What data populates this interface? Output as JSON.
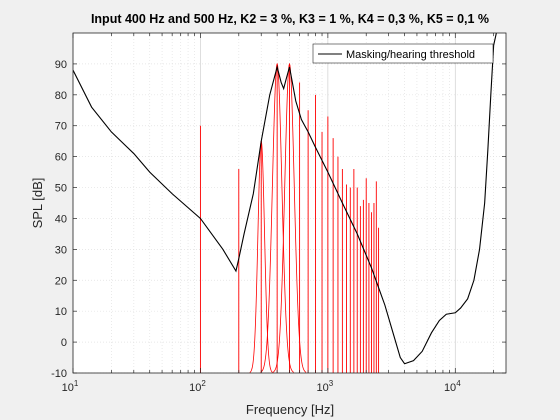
{
  "chart_data": {
    "type": "line",
    "title": "Input 400 Hz and 500 Hz, K2 = 3 %, K3 = 1 %, K4 = 0,3 %, K5 = 0,1 %",
    "xlabel": "Frequency [Hz]",
    "ylabel": "SPL [dB]",
    "xscale": "log",
    "xlim": [
      10,
      25000
    ],
    "ylim": [
      -10,
      100
    ],
    "yticks": [
      -10,
      0,
      10,
      20,
      30,
      40,
      50,
      60,
      70,
      80,
      90
    ],
    "xticks": [
      {
        "base": "10",
        "exp": "1"
      },
      {
        "base": "10",
        "exp": "2"
      },
      {
        "base": "10",
        "exp": "3"
      },
      {
        "base": "10",
        "exp": "4"
      }
    ],
    "grid": true,
    "legend": {
      "position": "top-right",
      "entries": [
        "Masking/hearing threshold"
      ]
    },
    "series": [
      {
        "name": "Masking/hearing threshold",
        "color": "#000000",
        "points": [
          [
            10,
            88
          ],
          [
            14,
            76
          ],
          [
            20,
            68
          ],
          [
            30,
            61
          ],
          [
            40,
            55
          ],
          [
            60,
            48
          ],
          [
            100,
            40
          ],
          [
            150,
            30
          ],
          [
            190,
            23
          ],
          [
            200,
            27
          ],
          [
            220,
            35
          ],
          [
            260,
            48
          ],
          [
            300,
            65
          ],
          [
            350,
            80
          ],
          [
            400,
            89
          ],
          [
            430,
            84
          ],
          [
            450,
            82
          ],
          [
            470,
            85
          ],
          [
            500,
            89
          ],
          [
            560,
            78
          ],
          [
            620,
            72
          ],
          [
            700,
            68
          ],
          [
            800,
            63
          ],
          [
            1000,
            55
          ],
          [
            1300,
            45
          ],
          [
            1700,
            35
          ],
          [
            2200,
            24
          ],
          [
            2800,
            12
          ],
          [
            3300,
            2
          ],
          [
            3700,
            -5
          ],
          [
            4000,
            -7
          ],
          [
            4700,
            -6
          ],
          [
            5500,
            -3
          ],
          [
            6500,
            3
          ],
          [
            7500,
            7
          ],
          [
            8500,
            9
          ],
          [
            10000,
            9.5
          ],
          [
            11000,
            11
          ],
          [
            12500,
            14
          ],
          [
            14000,
            20
          ],
          [
            15500,
            30
          ],
          [
            17000,
            45
          ],
          [
            18000,
            62
          ],
          [
            19000,
            80
          ],
          [
            20000,
            96
          ],
          [
            21000,
            100
          ]
        ]
      }
    ],
    "tone_lines": {
      "color": "#ff0000",
      "components": [
        {
          "f": 100,
          "level": 70
        },
        {
          "f": 200,
          "level": 56
        },
        {
          "f": 300,
          "level": 65
        },
        {
          "f": 400,
          "level": 90
        },
        {
          "f": 500,
          "level": 90
        },
        {
          "f": 600,
          "level": 84
        },
        {
          "f": 700,
          "level": 75
        },
        {
          "f": 800,
          "level": 80
        },
        {
          "f": 900,
          "level": 68
        },
        {
          "f": 1000,
          "level": 73
        },
        {
          "f": 1100,
          "level": 66
        },
        {
          "f": 1200,
          "level": 60
        },
        {
          "f": 1300,
          "level": 56
        },
        {
          "f": 1400,
          "level": 51
        },
        {
          "f": 1500,
          "level": 50
        },
        {
          "f": 1600,
          "level": 56
        },
        {
          "f": 1700,
          "level": 50
        },
        {
          "f": 1800,
          "level": 44
        },
        {
          "f": 1900,
          "level": 46
        },
        {
          "f": 2000,
          "level": 53
        },
        {
          "f": 2100,
          "level": 45
        },
        {
          "f": 2200,
          "level": 42
        },
        {
          "f": 2300,
          "level": 45
        },
        {
          "f": 2400,
          "level": 52
        },
        {
          "f": 2500,
          "level": 37
        }
      ],
      "masking_peaks": [
        {
          "f": 300,
          "level": 65,
          "width": 0.09
        },
        {
          "f": 400,
          "level": 90,
          "width": 0.13
        },
        {
          "f": 500,
          "level": 90,
          "width": 0.13
        }
      ]
    }
  }
}
